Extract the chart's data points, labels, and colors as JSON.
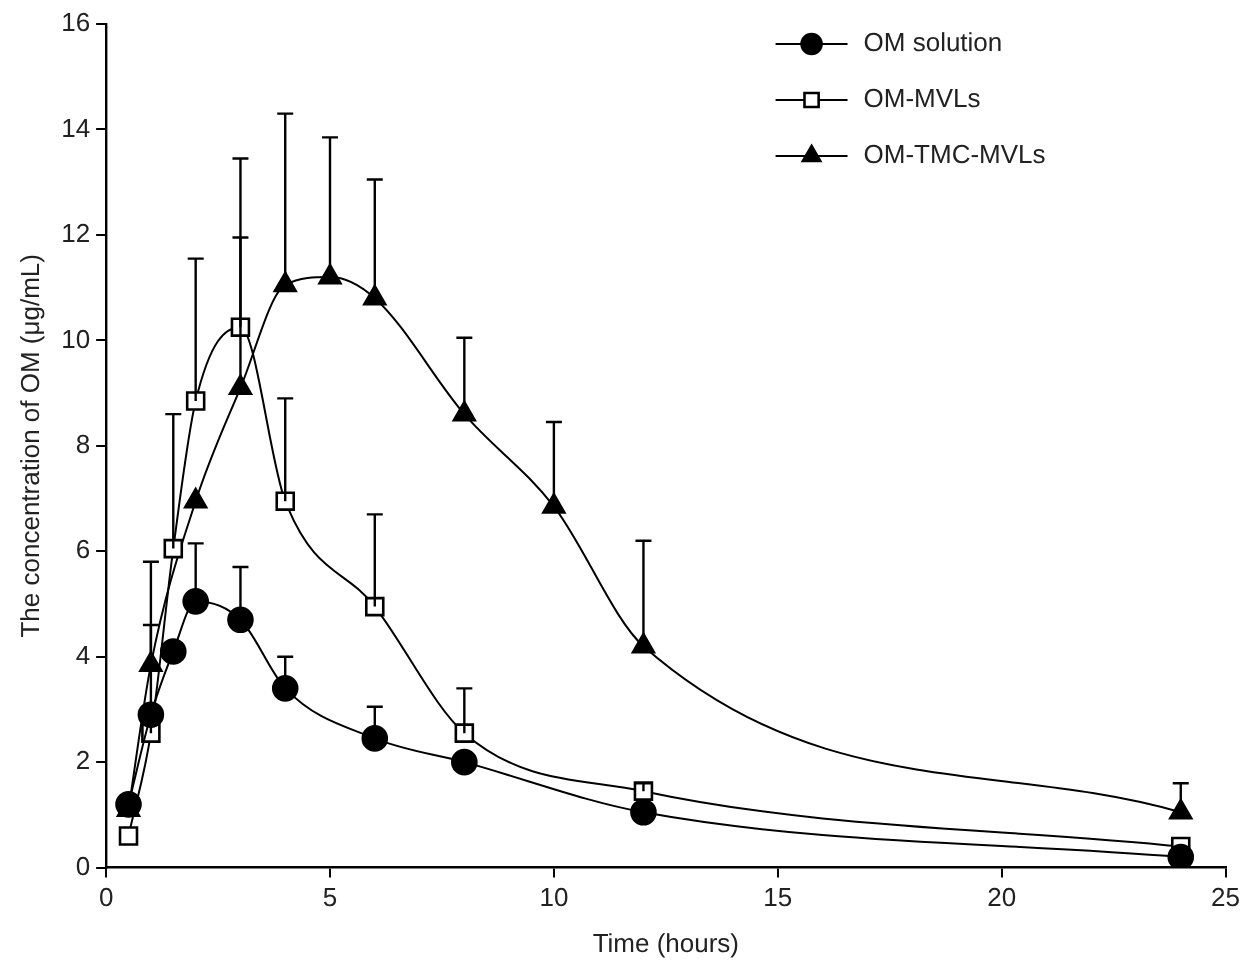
{
  "chart_data": {
    "type": "line",
    "xlabel": "Time (hours)",
    "ylabel": "The concentration of OM (μg/mL)",
    "xlim": [
      0,
      25
    ],
    "xticks": [
      0,
      5,
      10,
      15,
      20,
      25
    ],
    "ylim": [
      0,
      16
    ],
    "yticks": [
      0,
      2,
      4,
      6,
      8,
      10,
      12,
      14,
      16
    ],
    "grid": false,
    "legend": "top right",
    "series": [
      {
        "name": "OM solution",
        "color": "#000000",
        "marker": "circle",
        "x": [
          0.5,
          1,
          1.5,
          2,
          3,
          4,
          6,
          8,
          12,
          24
        ],
        "values": [
          1.2,
          2.9,
          4.1,
          5.05,
          4.7,
          3.4,
          2.45,
          2.0,
          1.05,
          0.2
        ],
        "errors": [
          null,
          null,
          null,
          [
            5.05,
            6.15
          ],
          [
            4.7,
            5.7
          ],
          [
            3.4,
            4.0
          ],
          [
            2.45,
            3.05
          ],
          null,
          null,
          null
        ]
      },
      {
        "name": "OM-MVLs",
        "color": "#000000",
        "marker": "square",
        "x": [
          0.5,
          1,
          1.5,
          2,
          3,
          4,
          6,
          8,
          12,
          24
        ],
        "values": [
          0.6,
          2.55,
          6.05,
          8.85,
          10.25,
          6.95,
          4.95,
          2.55,
          1.45,
          0.4
        ],
        "errors": [
          null,
          [
            2.55,
            4.6
          ],
          [
            6.05,
            8.6
          ],
          [
            8.85,
            11.55
          ],
          [
            10.25,
            11.95
          ],
          [
            6.95,
            8.9
          ],
          [
            4.95,
            6.7
          ],
          [
            2.55,
            3.4
          ],
          [
            1.45,
            1.6
          ],
          null
        ]
      },
      {
        "name": "OM-TMC-MVLs",
        "color": "#000000",
        "marker": "triangle",
        "x": [
          0.5,
          1,
          2,
          3,
          4,
          5,
          6,
          8,
          10,
          12,
          24
        ],
        "values": [
          1.1,
          3.85,
          6.95,
          9.1,
          11.05,
          11.2,
          10.8,
          8.6,
          6.85,
          4.2,
          1.05
        ],
        "errors": [
          null,
          [
            3.85,
            5.8
          ],
          null,
          [
            9.1,
            13.45
          ],
          [
            11.05,
            14.3
          ],
          [
            11.2,
            13.85
          ],
          [
            10.8,
            13.05
          ],
          [
            8.6,
            10.05
          ],
          [
            6.85,
            8.45
          ],
          [
            4.2,
            6.2
          ],
          [
            1.05,
            1.6
          ]
        ]
      }
    ]
  }
}
